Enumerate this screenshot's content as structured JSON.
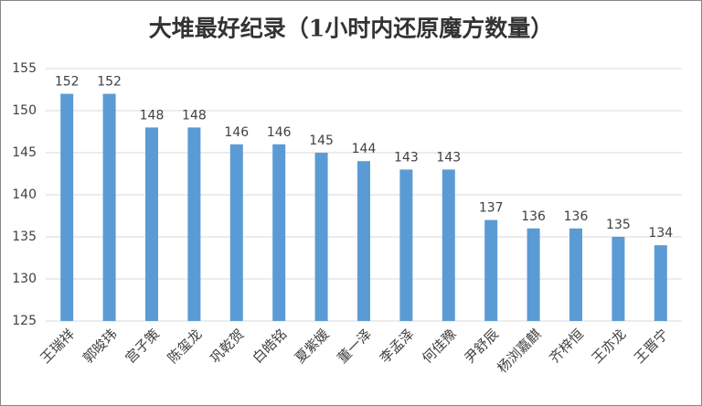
{
  "chart_data": {
    "type": "bar",
    "title": "大堆最好纪录（1小时内还原魔方数量）",
    "categories": [
      "王瑞祥",
      "郭晙玮",
      "宫子策",
      "陈玺龙",
      "巩乾贺",
      "白皓铭",
      "夏紫媛",
      "董一泽",
      "李孟泽",
      "何佳豫",
      "尹舒辰",
      "杨浏嘉麒",
      "齐梓恒",
      "王亦龙",
      "王晋宁"
    ],
    "values": [
      152,
      152,
      148,
      148,
      146,
      146,
      145,
      144,
      143,
      143,
      137,
      136,
      136,
      135,
      134
    ],
    "color": "#5b9bd5",
    "ylim": [
      125,
      155
    ],
    "yticks": [
      125,
      130,
      135,
      140,
      145,
      150,
      155
    ],
    "grid": true
  }
}
